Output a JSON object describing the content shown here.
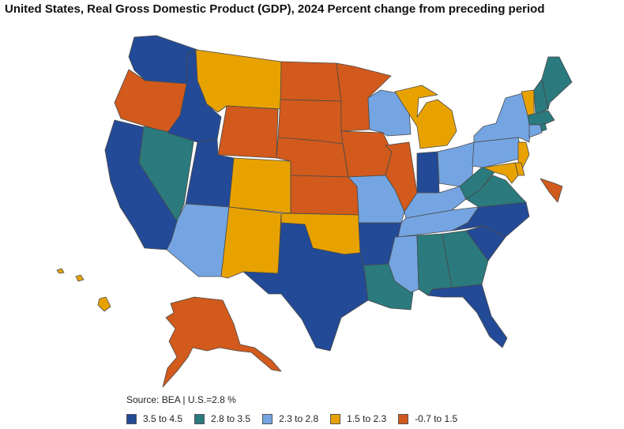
{
  "title": "United States, Real Gross Domestic Product (GDP), 2024 Percent change from preceding period",
  "source": "Source: BEA | U.S.=2.8 %",
  "legend": [
    {
      "label": "3.5 to 4.5",
      "color": "#234a96"
    },
    {
      "label": "2.8 to 3.5",
      "color": "#2a7a7e"
    },
    {
      "label": "2.3 to 2.8",
      "color": "#74a5e2"
    },
    {
      "label": "1.5 to 2.3",
      "color": "#e8a200"
    },
    {
      "label": "-0.7 to 1.5",
      "color": "#d15a1c"
    }
  ],
  "map_data": {
    "type": "choropleth",
    "region": "United States",
    "classes": {
      "c1": "3.5 to 4.5",
      "c2": "2.8 to 3.5",
      "c3": "2.3 to 2.8",
      "c4": "1.5 to 2.3",
      "c5": "-0.7 to 1.5"
    },
    "states": {
      "WA": "c1",
      "OR": "c5",
      "CA": "c1",
      "NV": "c2",
      "ID": "c1",
      "MT": "c4",
      "WY": "c5",
      "UT": "c1",
      "CO": "c4",
      "AZ": "c3",
      "NM": "c4",
      "ND": "c5",
      "SD": "c5",
      "NE": "c5",
      "KS": "c5",
      "OK": "c4",
      "TX": "c1",
      "MN": "c5",
      "IA": "c5",
      "MO": "c3",
      "AR": "c1",
      "LA": "c2",
      "WI": "c3",
      "IL": "c5",
      "MI": "c4",
      "IN": "c1",
      "OH": "c3",
      "KY": "c3",
      "TN": "c3",
      "MS": "c3",
      "AL": "c2",
      "GA": "c2",
      "FL": "c1",
      "SC": "c1",
      "NC": "c1",
      "VA": "c2",
      "WV": "c2",
      "PA": "c3",
      "NY": "c3",
      "VT": "c4",
      "NH": "c2",
      "ME": "c2",
      "MA": "c2",
      "RI": "c2",
      "CT": "c3",
      "NJ": "c4",
      "DE": "c4",
      "MD": "c4",
      "DC": "c5",
      "AK": "c5",
      "HI": "c4"
    }
  }
}
